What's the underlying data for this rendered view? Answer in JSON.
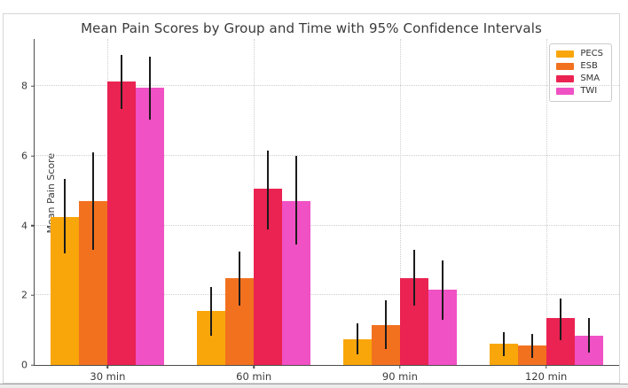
{
  "figure": {
    "title": "Mean Pain Scores by Group and Time with 95% Confidence Intervals",
    "ylabel": "Mean Pain Score"
  },
  "chart_data": {
    "type": "bar",
    "title": "Mean Pain Scores by Group and Time with 95% Confidence Intervals",
    "xlabel": "",
    "ylabel": "Mean Pain Score",
    "categories": [
      "30 min",
      "60 min",
      "90 min",
      "120 min"
    ],
    "yticks": [
      0,
      2,
      4,
      6,
      8
    ],
    "ylim": [
      0,
      9.36
    ],
    "grid": true,
    "grid_style": "dotted",
    "legend_position": "upper right",
    "error_bars": "95% confidence intervals, black vertical lines, no caps",
    "series": [
      {
        "name": "PECS",
        "color": "#F9A60B",
        "values": [
          4.25,
          1.55,
          0.75,
          0.6
        ],
        "ci_low": [
          3.2,
          0.85,
          0.3,
          0.25
        ],
        "ci_high": [
          5.35,
          2.25,
          1.2,
          0.95
        ]
      },
      {
        "name": "ESB",
        "color": "#F2711F",
        "values": [
          4.7,
          2.5,
          1.15,
          0.55
        ],
        "ci_low": [
          3.3,
          1.7,
          0.45,
          0.2
        ],
        "ci_high": [
          6.1,
          3.25,
          1.85,
          0.9
        ]
      },
      {
        "name": "SMA",
        "color": "#EA2352",
        "values": [
          8.15,
          5.05,
          2.5,
          1.35
        ],
        "ci_low": [
          7.35,
          3.9,
          1.7,
          0.7
        ],
        "ci_high": [
          8.9,
          6.15,
          3.3,
          1.9
        ]
      },
      {
        "name": "TWI",
        "color": "#F051C4",
        "values": [
          7.95,
          4.7,
          2.15,
          0.85
        ],
        "ci_low": [
          7.05,
          3.45,
          1.3,
          0.35
        ],
        "ci_high": [
          8.85,
          6.0,
          3.0,
          1.35
        ]
      }
    ],
    "colors": {
      "error_bar": "#1c1c1c",
      "grid": "#cdcdcd",
      "spine": "#4d4d4d",
      "text": "#3a3a3a"
    }
  }
}
